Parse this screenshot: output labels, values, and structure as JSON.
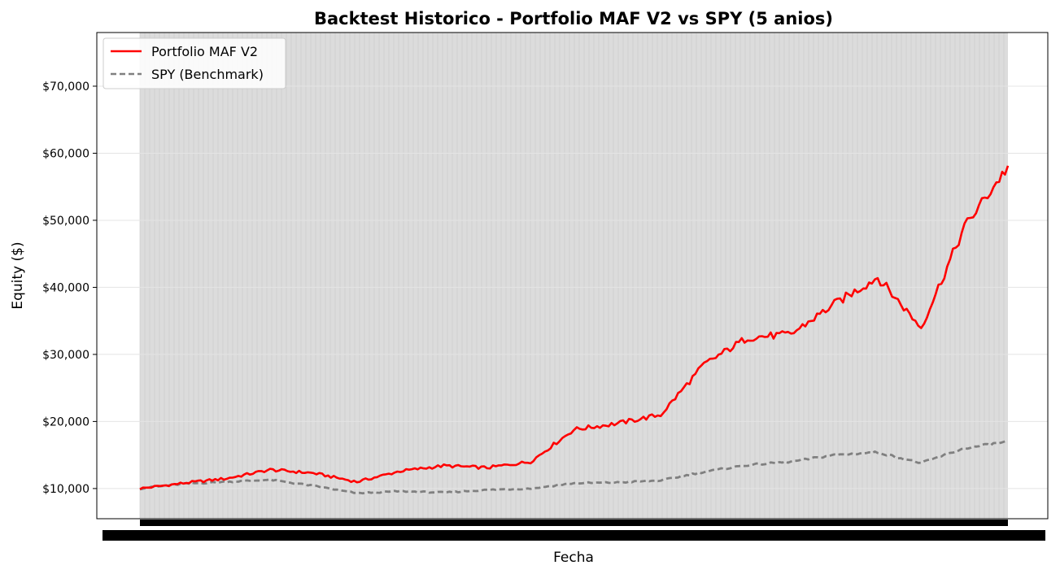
{
  "chart_data": {
    "type": "line",
    "title": "Backtest Historico - Portfolio MAF V2 vs SPY (5 anios)",
    "xlabel": "Fecha",
    "ylabel": "Equity ($)",
    "ylim": [
      5500,
      78000
    ],
    "x": [
      0,
      5,
      10,
      15,
      20,
      25,
      30,
      35,
      40,
      45,
      50,
      55,
      60,
      65,
      70,
      75,
      80,
      85,
      90,
      95,
      100
    ],
    "x_range": [
      0,
      100
    ],
    "yticks": [
      10000,
      20000,
      30000,
      40000,
      50000,
      60000,
      70000
    ],
    "ytick_labels": [
      "$10,000",
      "$20,000",
      "$30,000",
      "$40,000",
      "$50,000",
      "$60,000",
      "$70,000"
    ],
    "grid": true,
    "legend_position": "upper-left",
    "series": [
      {
        "name": "Portfolio MAF V2",
        "color": "#ff0000",
        "style": "solid",
        "values": [
          10000,
          10800,
          11500,
          12800,
          12300,
          11000,
          12600,
          13400,
          13100,
          14000,
          18800,
          19700,
          21000,
          28500,
          32500,
          33000,
          37500,
          41500,
          34000,
          49000,
          58000
        ]
      },
      {
        "name": "SPY (Benchmark)",
        "color": "#808080",
        "style": "dashed",
        "values": [
          10000,
          10700,
          11000,
          11300,
          10400,
          9300,
          9600,
          9400,
          9800,
          10000,
          10800,
          10900,
          11200,
          12500,
          13500,
          14000,
          15000,
          15400,
          13800,
          16000,
          17000
        ]
      }
    ]
  }
}
